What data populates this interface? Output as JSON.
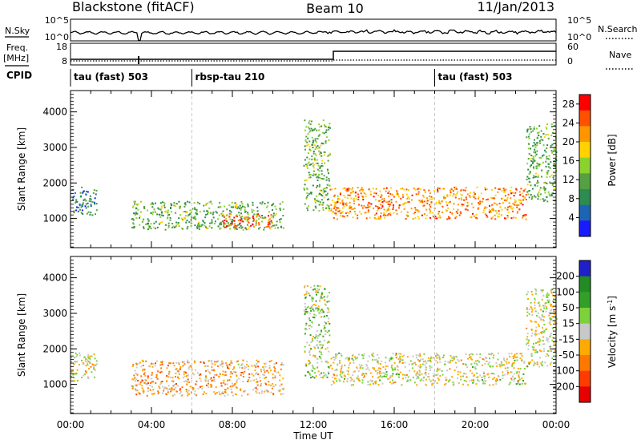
{
  "header": {
    "station": "Blackstone (fitACF)",
    "beam": "Beam 10",
    "date": "11/Jan/2013"
  },
  "param_panel": {
    "nsky_label": "N.Sky",
    "nsky_ticks": [
      "10^5",
      "10^0"
    ],
    "nsearch_label": "N.Search",
    "nsearch_ticks": [
      "10^5",
      "10^0"
    ],
    "freq_label_1": "Freq.",
    "freq_label_2": "[MHz]",
    "freq_ticks": [
      "18",
      "8"
    ],
    "nave_label": "Nave",
    "nave_ticks": [
      "60",
      "0"
    ],
    "cpid_label": "CPID"
  },
  "cpid_segments": [
    {
      "label": "tau (fast) 503",
      "start_h": 0,
      "end_h": 6
    },
    {
      "label": "rbsp-tau 210",
      "start_h": 6,
      "end_h": 18
    },
    {
      "label": "tau (fast) 503",
      "start_h": 18,
      "end_h": 24
    }
  ],
  "colors": {
    "power": [
      "#1a1aff",
      "#1e64b4",
      "#2d8c50",
      "#55a040",
      "#8cd22d",
      "#ffd200",
      "#ff9600",
      "#ff5000",
      "#ff0000"
    ],
    "velocity": [
      "#2020c8",
      "#228b22",
      "#32a028",
      "#7dd23c",
      "#c8c8c8",
      "#ffaa00",
      "#ff7800",
      "#ff3c00",
      "#e60000"
    ]
  },
  "chart_data": [
    {
      "type": "heatmap",
      "quantity": "Power",
      "xlabel": "",
      "ylabel": "Slant Range [km]",
      "x_ticks": [],
      "y_ticks": [
        "1000",
        "2000",
        "3000",
        "4000"
      ],
      "xlim": [
        0,
        24
      ],
      "ylim": [
        180,
        4600
      ],
      "colorbar": {
        "label": "Power [dB]",
        "ticks": [
          "4",
          "8",
          "12",
          "16",
          "20",
          "24",
          "28"
        ],
        "range": [
          0,
          30
        ]
      },
      "echo_regions": [
        {
          "t_start": 0.0,
          "t_end": 1.3,
          "range_min": 1100,
          "range_max": 1900,
          "dominant_power": 8
        },
        {
          "t_start": 3.0,
          "t_end": 10.5,
          "range_min": 700,
          "range_max": 1500,
          "dominant_power": 12
        },
        {
          "t_start": 7.5,
          "t_end": 10.0,
          "range_min": 750,
          "range_max": 1150,
          "dominant_power": 25
        },
        {
          "t_start": 11.5,
          "t_end": 12.8,
          "range_min": 1200,
          "range_max": 3800,
          "dominant_power": 12
        },
        {
          "t_start": 12.8,
          "t_end": 22.5,
          "range_min": 1000,
          "range_max": 1900,
          "dominant_power": 22
        },
        {
          "t_start": 22.5,
          "t_end": 24.0,
          "range_min": 1500,
          "range_max": 3700,
          "dominant_power": 12
        }
      ]
    },
    {
      "type": "heatmap",
      "quantity": "Velocity",
      "xlabel": "Time UT",
      "ylabel": "Slant Range [km]",
      "x_ticks": [
        "00:00",
        "04:00",
        "08:00",
        "12:00",
        "16:00",
        "20:00",
        "00:00"
      ],
      "y_ticks": [
        "1000",
        "2000",
        "3000",
        "4000"
      ],
      "xlim": [
        0,
        24
      ],
      "ylim": [
        180,
        4600
      ],
      "colorbar": {
        "label": "Velocity [m s^-1]",
        "ticks": [
          "200",
          "100",
          "50",
          "15",
          "-15",
          "-50",
          "-100",
          "-200"
        ],
        "range": [
          -250,
          250
        ]
      },
      "echo_regions": [
        {
          "t_start": 0.0,
          "t_end": 1.3,
          "range_min": 1100,
          "range_max": 1900,
          "dominant_velocity": -10
        },
        {
          "t_start": 3.0,
          "t_end": 10.5,
          "range_min": 700,
          "range_max": 1700,
          "dominant_velocity": -60
        },
        {
          "t_start": 11.5,
          "t_end": 12.8,
          "range_min": 1200,
          "range_max": 3800,
          "dominant_velocity": 40
        },
        {
          "t_start": 12.8,
          "t_end": 22.5,
          "range_min": 1000,
          "range_max": 1900,
          "dominant_velocity": 0
        },
        {
          "t_start": 22.5,
          "t_end": 24.0,
          "range_min": 1500,
          "range_max": 3700,
          "dominant_velocity": 0
        }
      ]
    }
  ]
}
